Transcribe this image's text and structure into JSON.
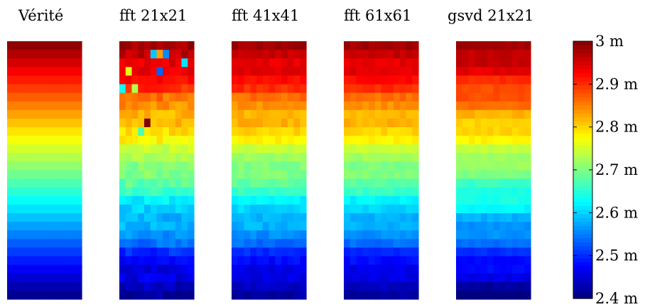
{
  "chart_data": {
    "type": "heatmap",
    "colormap": "jet",
    "clim": [
      2.4,
      3.0
    ],
    "colorbar": {
      "ticks": [
        3.0,
        2.9,
        2.8,
        2.7,
        2.6,
        2.5,
        2.4
      ],
      "tick_labels": [
        "3 m",
        "2.9 m",
        "2.8 m",
        "2.7 m",
        "2.6 m",
        "2.5 m",
        "2.4 m"
      ]
    },
    "panels": [
      {
        "title": "Vérité",
        "grid": [
          12,
          30
        ],
        "noise": 0.0,
        "blockRows": 1,
        "seed": 1
      },
      {
        "title": "fft 21x21",
        "grid": [
          12,
          30
        ],
        "noise": 0.018,
        "blockRows": 3,
        "seed": 7,
        "outliers": [
          [
            1,
            0.72
          ],
          [
            3,
            0.6
          ],
          [
            5,
            0.55
          ],
          [
            1,
            0.32
          ],
          [
            3,
            0.22
          ],
          [
            5,
            0.38
          ],
          [
            2,
            0.35
          ],
          [
            1,
            0.26
          ],
          [
            9,
            1.5
          ],
          [
            10,
            0.45
          ]
        ]
      },
      {
        "title": "fft 41x41",
        "grid": [
          12,
          30
        ],
        "noise": 0.012,
        "blockRows": 3,
        "seed": 11
      },
      {
        "title": "fft 61x61",
        "grid": [
          12,
          30
        ],
        "noise": 0.01,
        "blockRows": 3,
        "seed": 17
      },
      {
        "title": "gsvd 21x21",
        "grid": [
          12,
          30
        ],
        "noise": 0.008,
        "blockRows": 2,
        "seed": 23
      }
    ]
  }
}
